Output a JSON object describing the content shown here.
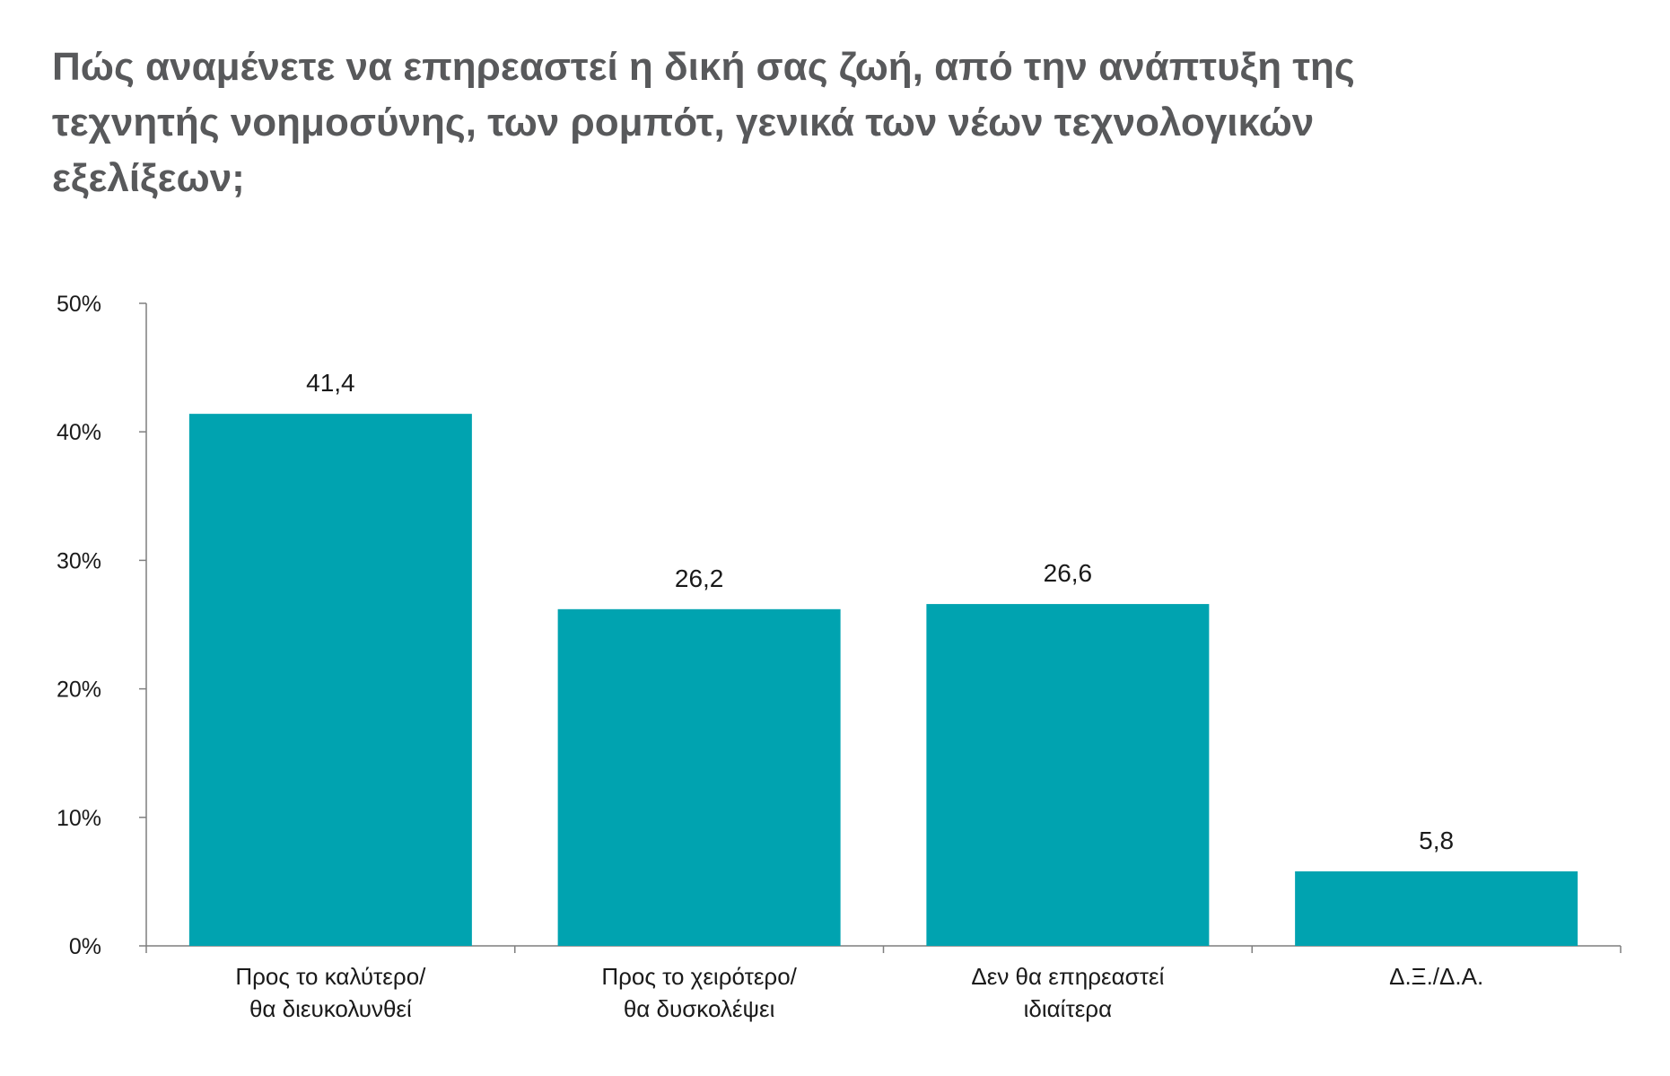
{
  "chart_data": {
    "type": "bar",
    "title_lines": [
      "Πώς αναμένετε να επηρεαστεί η δική σας ζωή, από την ανάπτυξη της",
      "τεχνητής νοημοσύνης, των ρομπότ, γενικά των νέων τεχνολογικών",
      "εξελίξεων;"
    ],
    "categories": [
      [
        "Προς το καλύτερο/",
        "θα διευκολυνθεί"
      ],
      [
        "Προς το χειρότερο/",
        "θα δυσκολέψει"
      ],
      [
        "Δεν θα επηρεαστεί",
        "ιδιαίτερα"
      ],
      [
        "Δ.Ξ./Δ.Α."
      ]
    ],
    "values": [
      41.4,
      26.2,
      26.6,
      5.8
    ],
    "value_labels": [
      "41,4",
      "26,2",
      "26,6",
      "5,8"
    ],
    "y_ticks": [
      "0%",
      "10%",
      "20%",
      "30%",
      "40%",
      "50%"
    ],
    "ylim": [
      0,
      50
    ],
    "bar_color": "#00a3b0",
    "axis_color": "#7f7f7f",
    "grid": false,
    "legend": "none"
  }
}
